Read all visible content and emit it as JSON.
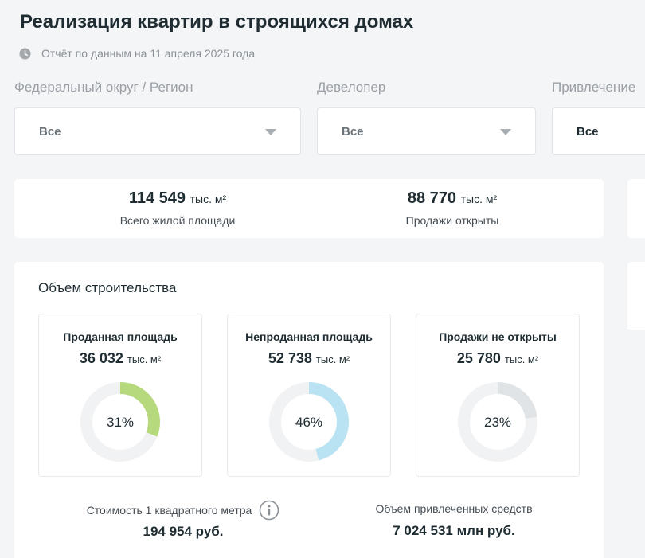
{
  "header": {
    "title": "Реализация квартир в строящихся домах",
    "report_date": "Отчёт по данным на 11 апреля 2025 года",
    "clock_icon": "clock-icon"
  },
  "filters": [
    {
      "label": "Федеральный округ / Регион",
      "value": "Все"
    },
    {
      "label": "Девелопер",
      "value": "Все"
    },
    {
      "label": "Привлечение",
      "value": "Все"
    }
  ],
  "summary": {
    "total_area": {
      "value": "114 549",
      "unit": "тыс. м²",
      "label": "Всего жилой площади"
    },
    "sales_open": {
      "value": "88 770",
      "unit": "тыс. м²",
      "label": "Продажи открыты"
    }
  },
  "construction": {
    "title": "Объем строительства",
    "cards": [
      {
        "title": "Проданная площадь",
        "value": "36 032",
        "unit": "тыс. м²",
        "percent": 31,
        "percent_label": "31%",
        "color": "#b5d97c"
      },
      {
        "title": "Непроданная площадь",
        "value": "52 738",
        "unit": "тыс. м²",
        "percent": 46,
        "percent_label": "46%",
        "color": "#b9e3f2"
      },
      {
        "title": "Продажи не открыты",
        "value": "25 780",
        "unit": "тыс. м²",
        "percent": 23,
        "percent_label": "23%",
        "color": "#e1e4e6"
      }
    ],
    "price": {
      "label": "Стоимость 1 квадратного метра",
      "value": "194 954 руб.",
      "icon": "info-icon"
    },
    "funds": {
      "label": "Объем привлеченных средств",
      "value": "7 024 531 млн руб."
    }
  },
  "colors": {
    "track": "#f1f2f3",
    "background": "#f4f5f7"
  }
}
